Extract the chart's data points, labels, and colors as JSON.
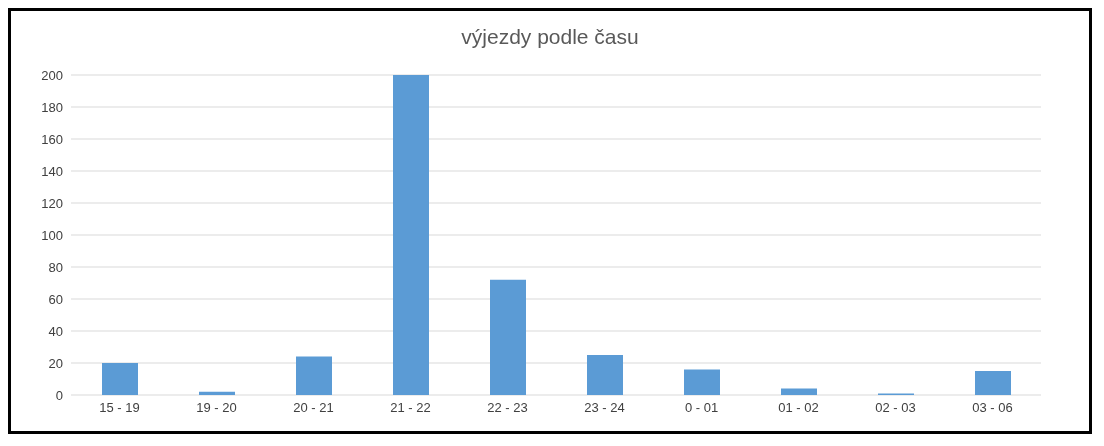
{
  "chart_data": {
    "type": "bar",
    "title": "výjezdy podle času",
    "categories": [
      "15 - 19",
      "19 - 20",
      "20 - 21",
      "21 - 22",
      "22 - 23",
      "23 - 24",
      "0 - 01",
      "01 - 02",
      "02 - 03",
      "03 - 06"
    ],
    "values": [
      20,
      2,
      24,
      200,
      72,
      25,
      16,
      4,
      1,
      15
    ],
    "color": "#5b9bd5",
    "ylim": [
      0,
      200
    ],
    "yticks": [
      0,
      20,
      40,
      60,
      80,
      100,
      120,
      140,
      160,
      180,
      200
    ],
    "grid": "y"
  }
}
